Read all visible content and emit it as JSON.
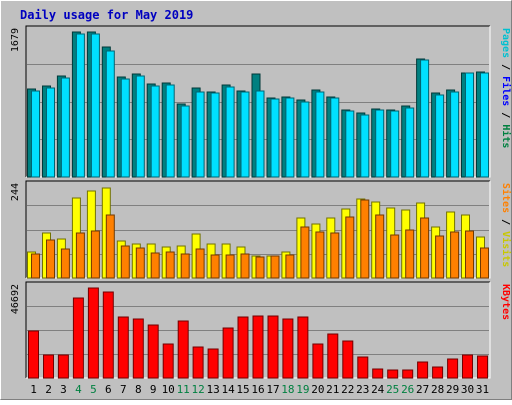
{
  "chart_data": {
    "type": "bar",
    "title": "Daily usage for May 2019",
    "days": [
      "1",
      "2",
      "3",
      "4",
      "5",
      "6",
      "7",
      "8",
      "9",
      "10",
      "11",
      "12",
      "13",
      "14",
      "15",
      "16",
      "17",
      "18",
      "19",
      "20",
      "21",
      "22",
      "23",
      "24",
      "25",
      "26",
      "27",
      "28",
      "29",
      "30",
      "31"
    ],
    "weekend_days": [
      "4",
      "5",
      "11",
      "12",
      "18",
      "19",
      "25",
      "26"
    ],
    "panels": [
      {
        "id": "top",
        "ymax": 1679,
        "ymax_label": "1679",
        "side_label": [
          {
            "text": "Pages",
            "color": "#00c0d0"
          },
          {
            "text": " / ",
            "color": "#000000"
          },
          {
            "text": "Files",
            "color": "#0000ff"
          },
          {
            "text": " / ",
            "color": "#000000"
          },
          {
            "text": "Hits",
            "color": "#008040"
          }
        ],
        "series": [
          {
            "name": "Hits",
            "color": "#008080",
            "values": [
              1020,
              1050,
              1165,
              1679,
              1680,
              1500,
              1160,
              1190,
              1080,
              1085,
              850,
              1030,
              990,
              1060,
              1000,
              1190,
              920,
              930,
              890,
              1010,
              930,
              775,
              740,
              790,
              780,
              820,
              1370,
              970,
              1010,
              1210,
              1215
            ]
          },
          {
            "name": "Files",
            "color": "#00e0ff",
            "values": [
              1000,
              1030,
              1150,
              1660,
              1660,
              1460,
              1140,
              1165,
              1055,
              1060,
              820,
              980,
              970,
              1040,
              980,
              1000,
              900,
              910,
              865,
              990,
              920,
              760,
              720,
              780,
              760,
              800,
              1350,
              950,
              990,
              1200,
              1200
            ]
          }
        ]
      },
      {
        "id": "middle",
        "ymax": 244,
        "ymax_label": "244",
        "side_label": [
          {
            "text": "Sites",
            "color": "#ff8000"
          },
          {
            "text": " / ",
            "color": "#000000"
          },
          {
            "text": "Visits",
            "color": "#c8c800"
          }
        ],
        "series": [
          {
            "name": "Visits",
            "color": "#ffff00",
            "values": [
              70,
              120,
              105,
              215,
              232,
              240,
              98,
              92,
              92,
              83,
              85,
              118,
              92,
              90,
              84,
              59,
              59,
              69,
              160,
              144,
              160,
              186,
              211,
              203,
              187,
              182,
              201,
              136,
              176,
              169,
              110
            ]
          },
          {
            "name": "Sites",
            "color": "#ff8000",
            "values": [
              65,
              103,
              78,
              120,
              127,
              170,
              85,
              80,
              68,
              70,
              65,
              78,
              62,
              62,
              65,
              56,
              59,
              63,
              138,
              123,
              120,
              164,
              208,
              168,
              116,
              128,
              160,
              112,
              124,
              125,
              80
            ]
          }
        ]
      },
      {
        "id": "bottom",
        "ymax": 46692,
        "ymax_label": "46692",
        "side_label": [
          {
            "text": "KBytes",
            "color": "#ff0000"
          }
        ],
        "series": [
          {
            "name": "KBytes",
            "color": "#ff0000",
            "values": [
              24600,
              11700,
              11700,
              41300,
              46692,
              44500,
              31500,
              30700,
              27400,
              17700,
              29700,
              16000,
              14900,
              25800,
              31500,
              32200,
              32100,
              30700,
              31700,
              17500,
              22700,
              19100,
              11100,
              4900,
              4300,
              4300,
              8300,
              5500,
              9700,
              11700,
              11300
            ]
          }
        ]
      }
    ]
  }
}
